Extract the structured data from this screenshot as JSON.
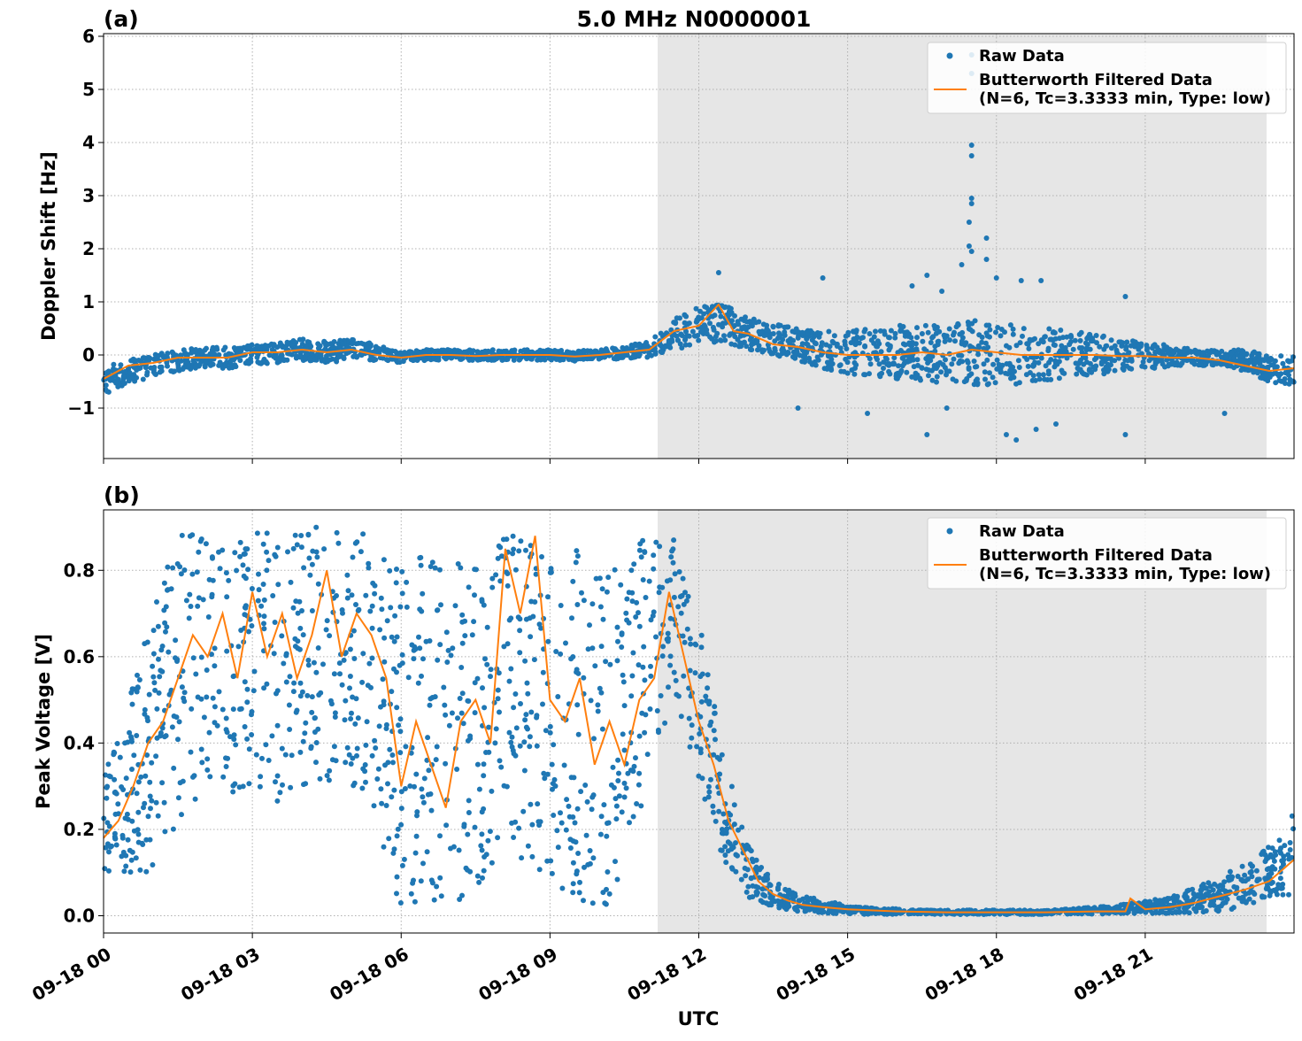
{
  "title": "5.0 MHz N0000001",
  "xlabel": "UTC",
  "x_ticks": [
    "09-18 00",
    "09-18 03",
    "09-18 06",
    "09-18 09",
    "09-18 12",
    "09-18 15",
    "09-18 18",
    "09-18 21"
  ],
  "legend": {
    "raw": "Raw Data",
    "filtered_line1": "Butterworth Filtered Data",
    "filtered_line2": "(N=6, Tc=3.3333 min, Type: low)"
  },
  "colors": {
    "raw": "#1f77b4",
    "filtered": "#ff7f0e",
    "shade": "#e6e6e6",
    "grid": "#b0b0b0"
  },
  "chart_data": [
    {
      "panel_label": "(a)",
      "type": "scatter",
      "ylabel": "Doppler Shift [Hz]",
      "y_ticks": [
        "6",
        "5",
        "4",
        "3",
        "2",
        "1",
        "0",
        "−1"
      ],
      "xlim_hours_utc": [
        0,
        24
      ],
      "ylim": [
        -1.95,
        6.05
      ],
      "shaded_span_hours_utc": [
        11.15,
        23.45
      ],
      "grid": true,
      "legend_position": "upper right",
      "series": [
        {
          "name": "Raw Data",
          "style": "markers",
          "x_hours_utc": [
            0,
            0.5,
            1,
            1.5,
            2,
            2.5,
            3,
            3.5,
            4,
            4.5,
            5,
            5.5,
            6,
            6.5,
            7,
            7.5,
            8,
            8.5,
            9,
            9.5,
            10,
            10.5,
            11,
            11.5,
            12,
            12.5,
            13,
            13.5,
            14,
            14.5,
            15,
            15.5,
            16,
            16.5,
            17,
            17.5,
            18,
            18.5,
            19,
            19.5,
            20,
            20.5,
            21,
            21.5,
            22,
            22.5,
            23,
            23.5,
            24
          ],
          "y_center": [
            -0.45,
            -0.3,
            -0.2,
            -0.1,
            -0.05,
            -0.05,
            0,
            0.05,
            0.1,
            0.05,
            0.1,
            0.05,
            -0.05,
            0,
            0,
            0,
            0,
            0,
            0,
            -0.02,
            0,
            0.05,
            0.1,
            0.4,
            0.55,
            0.6,
            0.4,
            0.3,
            0.2,
            0.1,
            0.05,
            0.05,
            0.05,
            0.05,
            0,
            0.05,
            0,
            0,
            0,
            0,
            0,
            0,
            -0.02,
            -0.02,
            -0.05,
            -0.05,
            -0.1,
            -0.25,
            -0.3
          ],
          "y_spread": [
            0.3,
            0.25,
            0.2,
            0.2,
            0.2,
            0.2,
            0.2,
            0.2,
            0.2,
            0.2,
            0.2,
            0.15,
            0.1,
            0.1,
            0.1,
            0.1,
            0.1,
            0.1,
            0.1,
            0.1,
            0.1,
            0.12,
            0.15,
            0.3,
            0.35,
            0.35,
            0.3,
            0.3,
            0.3,
            0.35,
            0.4,
            0.45,
            0.5,
            0.55,
            0.55,
            0.6,
            0.6,
            0.55,
            0.5,
            0.45,
            0.4,
            0.3,
            0.25,
            0.2,
            0.15,
            0.15,
            0.2,
            0.25,
            0.3
          ],
          "outliers": [
            [
              17.5,
              5.65
            ],
            [
              17.5,
              5.3
            ],
            [
              17.5,
              3.95
            ],
            [
              17.5,
              3.75
            ],
            [
              17.5,
              2.95
            ],
            [
              17.5,
              2.85
            ],
            [
              17.45,
              2.5
            ],
            [
              17.8,
              2.2
            ],
            [
              17.45,
              2.05
            ],
            [
              17.5,
              1.95
            ],
            [
              17.8,
              1.8
            ],
            [
              17.3,
              1.7
            ],
            [
              16.6,
              1.5
            ],
            [
              14.5,
              1.45
            ],
            [
              18.0,
              1.45
            ],
            [
              18.5,
              1.4
            ],
            [
              18.9,
              1.4
            ],
            [
              16.3,
              1.3
            ],
            [
              16.9,
              1.2
            ],
            [
              20.6,
              1.1
            ],
            [
              12.4,
              1.55
            ],
            [
              16.6,
              -1.5
            ],
            [
              18.2,
              -1.5
            ],
            [
              18.4,
              -1.6
            ],
            [
              18.8,
              -1.4
            ],
            [
              20.6,
              -1.5
            ],
            [
              22.6,
              -1.1
            ],
            [
              14.0,
              -1.0
            ],
            [
              17.0,
              -1.0
            ],
            [
              19.2,
              -1.3
            ],
            [
              15.4,
              -1.1
            ]
          ]
        },
        {
          "name": "Butterworth Filtered Data (N=6, Tc=3.3333 min, Type: low)",
          "style": "line",
          "x_hours_utc": [
            0,
            0.5,
            1,
            1.5,
            2,
            2.5,
            3,
            3.5,
            4,
            4.5,
            5,
            5.5,
            6,
            6.5,
            7,
            7.5,
            8,
            8.5,
            9,
            9.5,
            10,
            10.5,
            11,
            11.5,
            12,
            12.4,
            12.7,
            13,
            13.5,
            14,
            14.5,
            15,
            15.5,
            16,
            16.5,
            17,
            17.5,
            18,
            18.5,
            19,
            19.5,
            20,
            20.5,
            21,
            21.5,
            22,
            22.5,
            23,
            23.5,
            24
          ],
          "y": [
            -0.45,
            -0.2,
            -0.15,
            -0.05,
            -0.05,
            -0.05,
            0.05,
            0.05,
            0.1,
            0.05,
            0.1,
            0.0,
            -0.05,
            0,
            0,
            -0.02,
            0,
            0,
            0,
            -0.03,
            0,
            0.05,
            0.1,
            0.45,
            0.55,
            0.95,
            0.45,
            0.4,
            0.2,
            0.15,
            0.05,
            0.0,
            0.0,
            0.0,
            0.05,
            0.0,
            0.1,
            0.05,
            0.0,
            0.0,
            0.0,
            0.0,
            -0.02,
            -0.02,
            -0.05,
            -0.05,
            -0.1,
            -0.2,
            -0.3,
            -0.25
          ]
        }
      ]
    },
    {
      "panel_label": "(b)",
      "type": "scatter",
      "ylabel": "Peak Voltage [V]",
      "y_ticks": [
        "0.8",
        "0.6",
        "0.4",
        "0.2",
        "0.0"
      ],
      "xlim_hours_utc": [
        0,
        24
      ],
      "ylim": [
        -0.04,
        0.94
      ],
      "shaded_span_hours_utc": [
        11.15,
        23.45
      ],
      "grid": true,
      "legend_position": "upper right",
      "series": [
        {
          "name": "Raw Data",
          "style": "markers",
          "x_hours_utc": [
            0,
            0.5,
            1,
            1.5,
            2,
            2.5,
            3,
            3.5,
            4,
            4.5,
            5,
            5.5,
            6,
            6.5,
            7,
            7.5,
            8,
            8.5,
            9,
            9.5,
            10,
            10.5,
            11,
            11.5,
            12,
            12.5,
            13,
            13.5,
            14,
            14.5,
            15,
            15.5,
            16,
            16.5,
            17,
            17.5,
            18,
            18.5,
            19,
            19.5,
            20,
            20.5,
            21,
            21.5,
            22,
            22.5,
            23,
            23.5,
            24
          ],
          "y_center": [
            0.2,
            0.3,
            0.4,
            0.55,
            0.6,
            0.58,
            0.6,
            0.55,
            0.6,
            0.6,
            0.6,
            0.55,
            0.4,
            0.45,
            0.4,
            0.45,
            0.5,
            0.5,
            0.45,
            0.45,
            0.4,
            0.45,
            0.6,
            0.7,
            0.5,
            0.25,
            0.1,
            0.05,
            0.03,
            0.02,
            0.015,
            0.01,
            0.01,
            0.008,
            0.008,
            0.008,
            0.008,
            0.008,
            0.008,
            0.01,
            0.012,
            0.015,
            0.02,
            0.025,
            0.035,
            0.05,
            0.07,
            0.1,
            0.14
          ],
          "y_spread": [
            0.12,
            0.2,
            0.3,
            0.35,
            0.3,
            0.3,
            0.3,
            0.33,
            0.3,
            0.3,
            0.3,
            0.33,
            0.4,
            0.4,
            0.4,
            0.4,
            0.38,
            0.38,
            0.4,
            0.4,
            0.4,
            0.38,
            0.3,
            0.18,
            0.2,
            0.12,
            0.06,
            0.03,
            0.02,
            0.015,
            0.01,
            0.008,
            0.006,
            0.005,
            0.005,
            0.005,
            0.005,
            0.005,
            0.005,
            0.006,
            0.008,
            0.01,
            0.015,
            0.02,
            0.03,
            0.04,
            0.05,
            0.06,
            0.1
          ],
          "outliers": []
        },
        {
          "name": "Butterworth Filtered Data (N=6, Tc=3.3333 min, Type: low)",
          "style": "line",
          "x_hours_utc": [
            0,
            0.3,
            0.6,
            0.9,
            1.2,
            1.5,
            1.8,
            2.1,
            2.4,
            2.7,
            3.0,
            3.3,
            3.6,
            3.9,
            4.2,
            4.5,
            4.8,
            5.1,
            5.4,
            5.7,
            6.0,
            6.3,
            6.6,
            6.9,
            7.2,
            7.5,
            7.8,
            8.1,
            8.4,
            8.7,
            9.0,
            9.3,
            9.6,
            9.9,
            10.2,
            10.5,
            10.8,
            11.1,
            11.4,
            11.7,
            12.0,
            12.3,
            12.6,
            12.9,
            13.2,
            13.5,
            13.8,
            14.1,
            14.5,
            15,
            16,
            17,
            18,
            19,
            20,
            20.6,
            20.7,
            21,
            21.5,
            22,
            22.5,
            23,
            23.5,
            24
          ],
          "y": [
            0.18,
            0.22,
            0.3,
            0.4,
            0.45,
            0.55,
            0.65,
            0.6,
            0.7,
            0.55,
            0.75,
            0.6,
            0.7,
            0.55,
            0.65,
            0.8,
            0.6,
            0.7,
            0.65,
            0.55,
            0.3,
            0.45,
            0.35,
            0.25,
            0.45,
            0.5,
            0.4,
            0.85,
            0.7,
            0.88,
            0.5,
            0.45,
            0.55,
            0.35,
            0.45,
            0.35,
            0.5,
            0.55,
            0.75,
            0.6,
            0.45,
            0.35,
            0.22,
            0.15,
            0.08,
            0.05,
            0.035,
            0.025,
            0.02,
            0.015,
            0.01,
            0.008,
            0.008,
            0.008,
            0.01,
            0.01,
            0.04,
            0.015,
            0.02,
            0.03,
            0.045,
            0.06,
            0.08,
            0.13
          ]
        }
      ]
    }
  ]
}
